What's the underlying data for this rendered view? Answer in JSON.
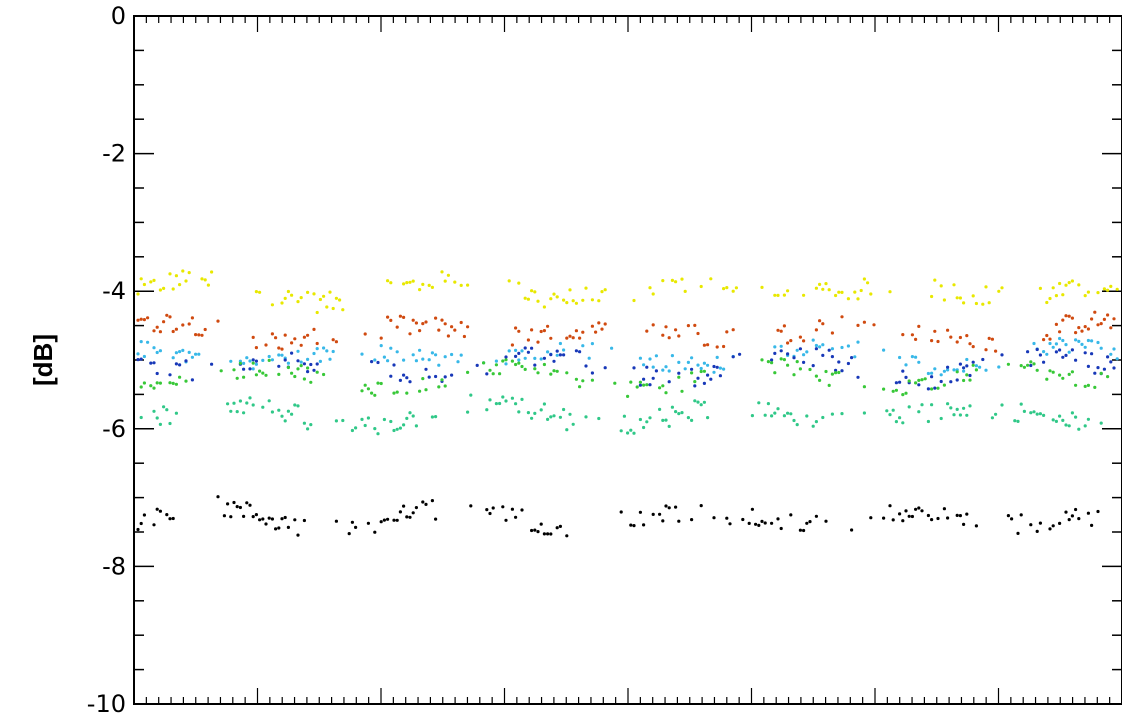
{
  "chart_data": {
    "type": "scatter",
    "title": "",
    "xlabel": "",
    "ylabel": "[dB]",
    "ylim": [
      -10,
      0
    ],
    "yticks": [
      0,
      -2,
      -4,
      -6,
      -8,
      -10
    ],
    "ytick_labels": [
      "0",
      "-2",
      "-4",
      "-6",
      "-8",
      "-10"
    ],
    "x_minor_tick_count": 80,
    "grid": false,
    "legend": "none",
    "series": [
      {
        "color": "#e8e800",
        "level": -4.0,
        "spread": 0.15
      },
      {
        "color": "#d04a10",
        "level": -4.6,
        "spread": 0.15
      },
      {
        "color": "#38b8e8",
        "level": -4.95,
        "spread": 0.12
      },
      {
        "color": "#1838b8",
        "level": -5.1,
        "spread": 0.15
      },
      {
        "color": "#38c838",
        "level": -5.25,
        "spread": 0.12
      },
      {
        "color": "#30c888",
        "level": -5.8,
        "spread": 0.15
      },
      {
        "color": "#000000",
        "level": -7.3,
        "spread": 0.15
      }
    ]
  }
}
